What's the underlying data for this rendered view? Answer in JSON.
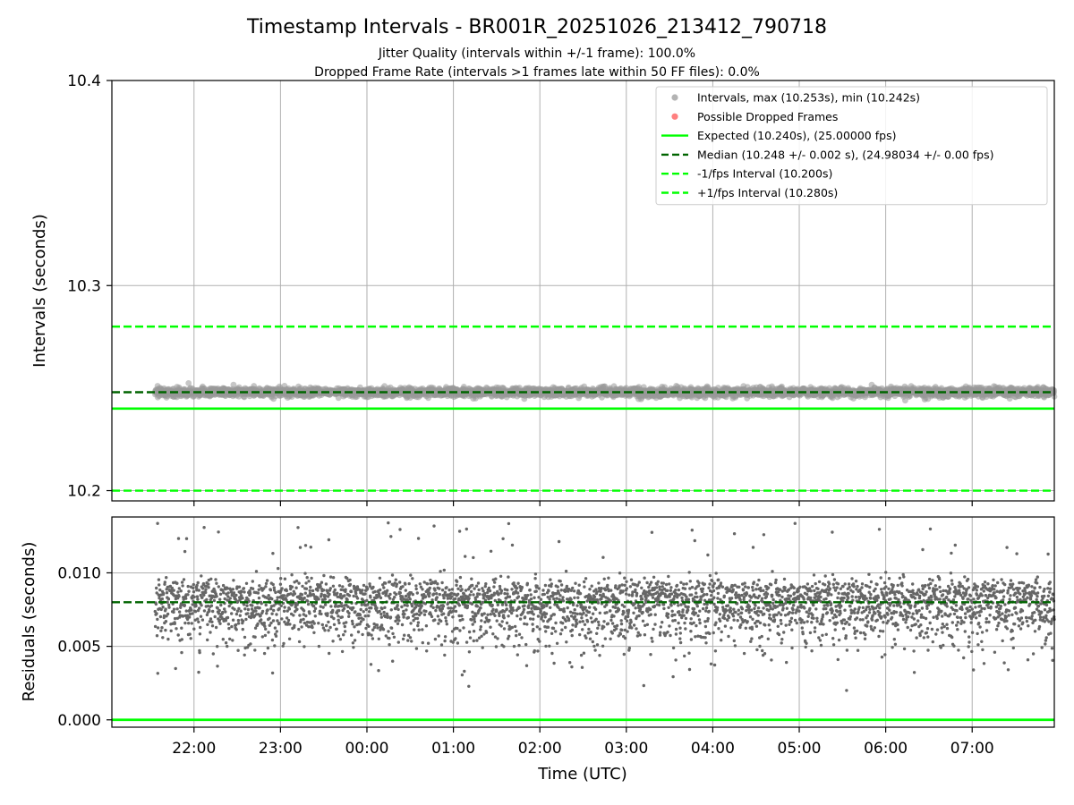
{
  "title": "Timestamp Intervals - BR001R_20251026_213412_790718",
  "subtitle_1": "Jitter Quality (intervals within +/-1 frame): 100.0%",
  "subtitle_2": "Dropped Frame Rate (intervals >1 frames late within 50 FF files): 0.0%",
  "colors": {
    "intervals": "#999999",
    "dropped": "#ff5555",
    "expected": "#00ff00",
    "median": "#006400",
    "fps_band": "#00ff00",
    "grid": "#b0b0b0",
    "residual_points": "#666666"
  },
  "chart_data": [
    {
      "type": "scatter",
      "panel": "intervals",
      "ylabel": "Intervals (seconds)",
      "xlabel": "",
      "x_range_hours": [
        -2.95,
        7.95
      ],
      "x_ticks_hours": [
        -2,
        -1,
        0,
        1,
        2,
        3,
        4,
        5,
        6,
        7
      ],
      "ylim": [
        10.195,
        10.4
      ],
      "y_ticks": [
        "10.2",
        "10.3",
        "10.4"
      ],
      "y_tick_values": [
        10.2,
        10.3,
        10.4
      ],
      "grid": true,
      "legend_position": "top-right",
      "legend": [
        {
          "label": "Intervals, max (10.253s), min (10.242s)",
          "kind": "marker",
          "color": "#999999"
        },
        {
          "label": "Possible Dropped Frames",
          "kind": "marker",
          "color": "#ff5555"
        },
        {
          "label": "Expected (10.240s), (25.00000 fps)",
          "kind": "solid",
          "color": "#00ff00"
        },
        {
          "label": "Median (10.248 +/- 0.002 s), (24.98034 +/- 0.00 fps)",
          "kind": "dashed",
          "color": "#006400"
        },
        {
          "label": "-1/fps Interval (10.200s)",
          "kind": "dashed",
          "color": "#00ff00"
        },
        {
          "label": "+1/fps Interval (10.280s)",
          "kind": "dashed",
          "color": "#00ff00"
        }
      ],
      "reference_lines": {
        "expected": 10.24,
        "median": 10.248,
        "minus_fps": 10.2,
        "plus_fps": 10.28
      },
      "series": {
        "name": "Intervals",
        "start_hour": -2.45,
        "end_hour": 7.95,
        "count": 3650,
        "min": 10.242,
        "max": 10.253,
        "median": 10.248,
        "std": 0.002
      }
    },
    {
      "type": "scatter",
      "panel": "residuals",
      "ylabel": "Residuals (seconds)",
      "xlabel": "Time (UTC)",
      "x_range_hours": [
        -2.95,
        7.95
      ],
      "x_ticks": [
        "22:00",
        "23:00",
        "00:00",
        "01:00",
        "02:00",
        "03:00",
        "04:00",
        "05:00",
        "06:00",
        "07:00"
      ],
      "x_tick_hours": [
        -2,
        -1,
        0,
        1,
        2,
        3,
        4,
        5,
        6,
        7
      ],
      "ylim": [
        -0.0005,
        0.0138
      ],
      "y_ticks": [
        "0.000",
        "0.005",
        "0.010"
      ],
      "y_tick_values": [
        0.0,
        0.005,
        0.01
      ],
      "grid": true,
      "reference_lines": {
        "zero": 0.0,
        "median": 0.008
      },
      "series": {
        "name": "Residuals",
        "start_hour": -2.45,
        "end_hour": 7.95,
        "count": 3650,
        "min": 0.002,
        "max": 0.0135,
        "median": 0.008,
        "std": 0.0018
      }
    }
  ]
}
